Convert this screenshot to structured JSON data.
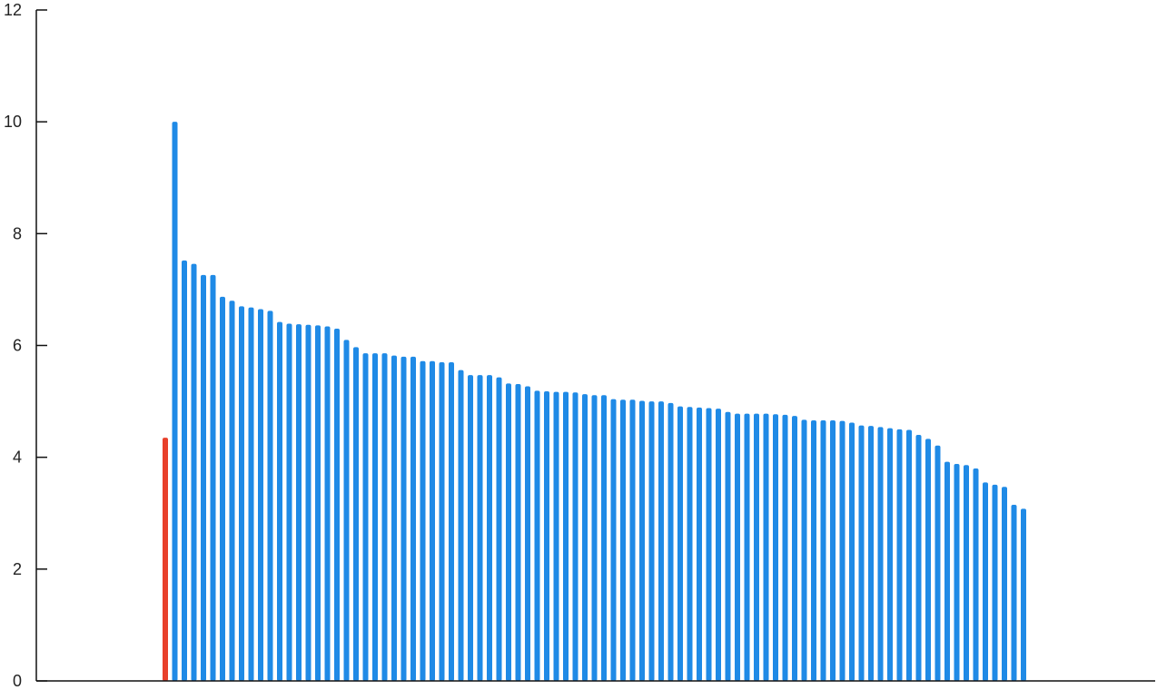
{
  "chart_data": {
    "type": "bar",
    "title": "",
    "xlabel": "",
    "ylabel": "",
    "ylim": [
      0,
      12
    ],
    "yticks": [
      0,
      2,
      4,
      6,
      8,
      10,
      12
    ],
    "grid": false,
    "legend": "none",
    "colors": {
      "highlight": "#e8402b",
      "bar": "#1f8ae6",
      "axis": "#111111"
    },
    "highlight_value": 4.35,
    "values": [
      10.0,
      7.52,
      7.46,
      7.26,
      7.26,
      6.87,
      6.8,
      6.7,
      6.68,
      6.65,
      6.62,
      6.42,
      6.39,
      6.38,
      6.37,
      6.36,
      6.34,
      6.3,
      6.1,
      5.97,
      5.86,
      5.86,
      5.86,
      5.82,
      5.8,
      5.8,
      5.72,
      5.72,
      5.7,
      5.7,
      5.56,
      5.47,
      5.47,
      5.47,
      5.43,
      5.32,
      5.31,
      5.27,
      5.19,
      5.18,
      5.17,
      5.17,
      5.16,
      5.13,
      5.11,
      5.11,
      5.04,
      5.03,
      5.03,
      5.01,
      5.0,
      5.0,
      4.97,
      4.91,
      4.9,
      4.89,
      4.88,
      4.87,
      4.81,
      4.78,
      4.78,
      4.78,
      4.78,
      4.77,
      4.76,
      4.74,
      4.67,
      4.66,
      4.66,
      4.66,
      4.65,
      4.62,
      4.57,
      4.56,
      4.54,
      4.52,
      4.5,
      4.49,
      4.4,
      4.33,
      4.21,
      3.92,
      3.88,
      3.86,
      3.8,
      3.55,
      3.51,
      3.47,
      3.15,
      3.08
    ]
  }
}
